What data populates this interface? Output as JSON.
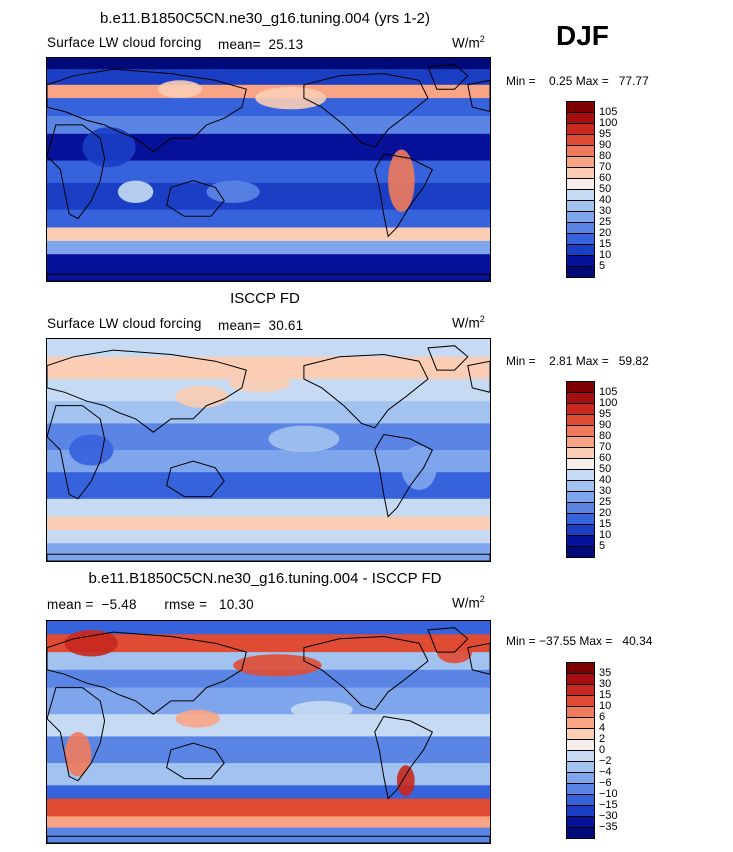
{
  "season": "DJF",
  "panels": [
    {
      "id": "model",
      "title": "b.e11.B1850C5CN.ne30_g16.tuning.004 (yrs 1-2)",
      "variable": "Surface LW cloud forcing",
      "stat_line": "mean=  25.13",
      "units_base": "W/m",
      "units_exp": "2",
      "minmax": "Min =    0.25 Max =   77.77",
      "colorbar_labels": [
        "105",
        "100",
        "95",
        "90",
        "80",
        "70",
        "60",
        "50",
        "40",
        "30",
        "25",
        "20",
        "15",
        "10",
        "5"
      ]
    },
    {
      "id": "obs",
      "title": "ISCCP FD",
      "variable": "Surface LW cloud forcing",
      "stat_line": "mean=  30.61",
      "units_base": "W/m",
      "units_exp": "2",
      "minmax": "Min =    2.81 Max =   59.82",
      "colorbar_labels": [
        "105",
        "100",
        "95",
        "90",
        "80",
        "70",
        "60",
        "50",
        "40",
        "30",
        "25",
        "20",
        "15",
        "10",
        "5"
      ]
    },
    {
      "id": "diff",
      "title": "b.e11.B1850C5CN.ne30_g16.tuning.004 - ISCCP FD",
      "variable": "",
      "stat_line": "mean =  −5.48       rmse =   10.30",
      "units_base": "W/m",
      "units_exp": "2",
      "minmax": "Min = −37.55 Max =   40.34",
      "colorbar_labels": [
        "35",
        "30",
        "15",
        "10",
        "6",
        "4",
        "2",
        "0",
        "−2",
        "−4",
        "−6",
        "−10",
        "−15",
        "−30",
        "−35"
      ]
    }
  ],
  "colors": {
    "abs_scale": [
      "#7d0000",
      "#a50f0f",
      "#c8281e",
      "#e04b33",
      "#f07b5c",
      "#f9a585",
      "#fbcdb5",
      "#f5eeea",
      "#c6dbf3",
      "#a2c2ef",
      "#7fa6ec",
      "#5b85e5",
      "#3662dc",
      "#1a3fc4",
      "#08119a",
      "#000a78"
    ],
    "diff_scale": [
      "#7d0000",
      "#a50f0f",
      "#c8281e",
      "#e04b33",
      "#f07b5c",
      "#f9a585",
      "#fbcdb5",
      "#f5eeea",
      "#c6dbf3",
      "#a2c2ef",
      "#7fa6ec",
      "#5b85e5",
      "#3662dc",
      "#1a3fc4",
      "#08119a",
      "#000a78"
    ]
  }
}
